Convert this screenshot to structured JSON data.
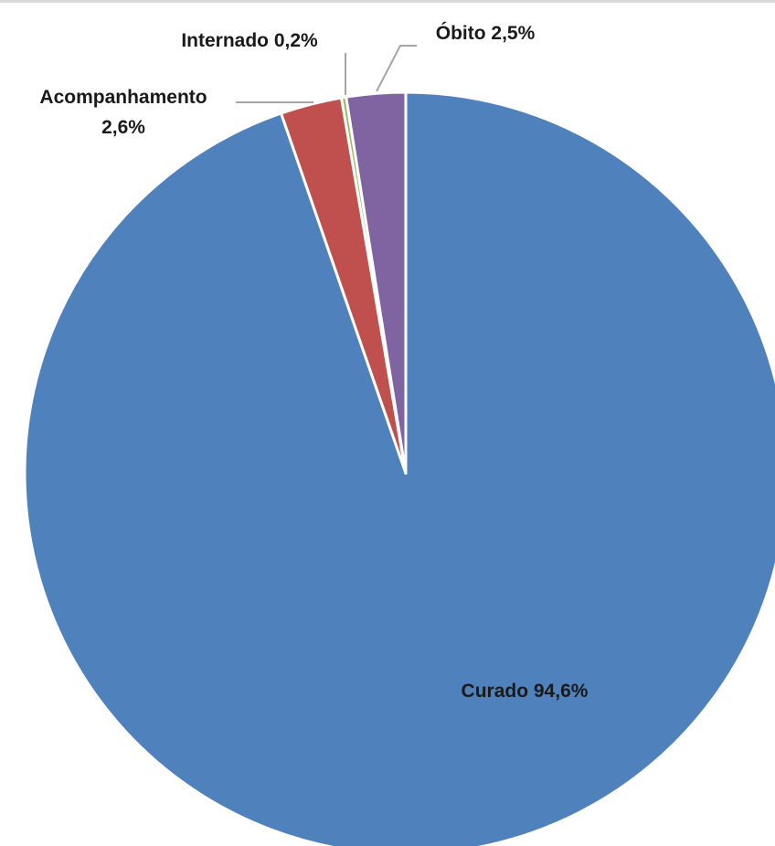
{
  "chart_data": {
    "type": "pie",
    "title": "",
    "slices": [
      {
        "name": "Curado",
        "value": 94.6,
        "label": "Curado 94,6%",
        "color": "#4f81bd"
      },
      {
        "name": "Acompanhamento",
        "value": 2.6,
        "label": "Acompanhamento 2,6%",
        "label_lines": [
          "Acompanhamento",
          "2,6%"
        ],
        "color": "#c0504d"
      },
      {
        "name": "Internado",
        "value": 0.2,
        "label": "Internado 0,2%",
        "color": "#9bbb59"
      },
      {
        "name": "Óbito",
        "value": 2.5,
        "label": "Óbito 2,5%",
        "color": "#8064a2"
      }
    ],
    "start_angle_deg": 0,
    "direction": "clockwise",
    "legend": "none",
    "data_labels": "category and percentage"
  }
}
